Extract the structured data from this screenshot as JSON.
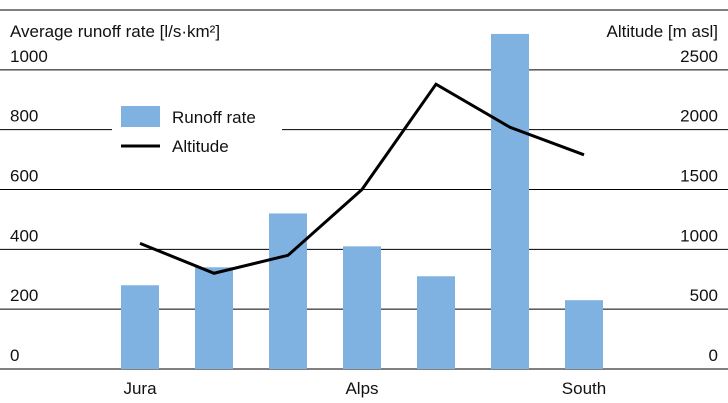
{
  "chart_data": {
    "type": "bar_line",
    "y_label": "Average runoff rate [l/s·km²]",
    "y2_label": "Altitude [m asl]",
    "categories": [
      "Jura",
      null,
      null,
      "Alps",
      null,
      null,
      "South"
    ],
    "series": [
      {
        "name": "Runoff rate",
        "type": "bar",
        "color": "#7fb2e0",
        "values": [
          280,
          340,
          520,
          410,
          310,
          1120,
          230
        ]
      },
      {
        "name": "Altitude",
        "type": "line",
        "color": "#000000",
        "axis": "y2",
        "values": [
          1050,
          800,
          950,
          1500,
          2380,
          2020,
          1790
        ]
      }
    ],
    "ylim": [
      0,
      1200
    ],
    "yticks": [
      0,
      200,
      400,
      600,
      800,
      1000
    ],
    "y2lim": [
      0,
      3000
    ],
    "y2ticks": [
      0,
      500,
      1000,
      1500,
      2000,
      2500
    ],
    "grid": true,
    "legend": "upper left"
  }
}
